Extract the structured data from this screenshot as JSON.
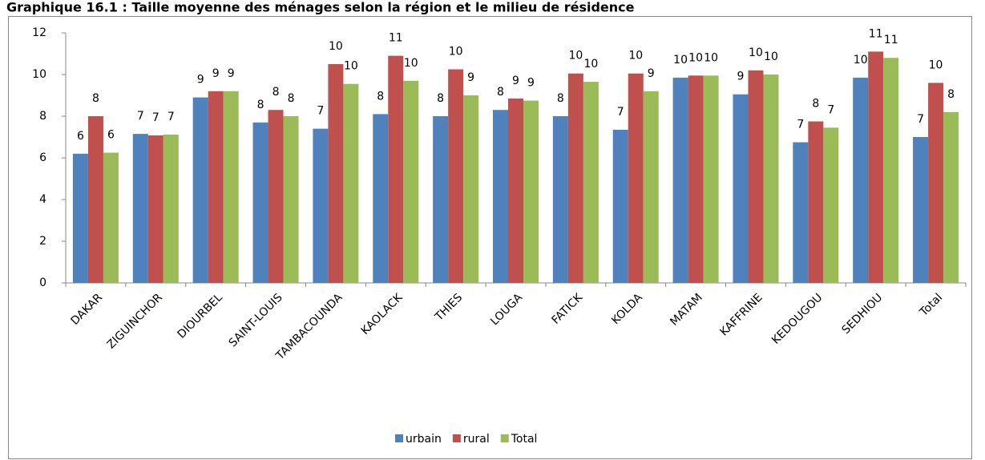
{
  "chart_data": {
    "type": "bar",
    "title": "Graphique 16.1 : Taille moyenne des ménages selon la région et le milieu de résidence",
    "categories": [
      "DAKAR",
      "ZIGUINCHOR",
      "DIOURBEL",
      "SAINT-LOUIS",
      "TAMBACOUNDA",
      "KAOLACK",
      "THIES",
      "LOUGA",
      "FATICK",
      "KOLDA",
      "MATAM",
      "KAFFRINE",
      "KEDOUGOU",
      "SEDHIOU",
      "Total"
    ],
    "series": [
      {
        "name": "urbain",
        "color": "#4f81bd",
        "values": [
          6.2,
          7.15,
          8.9,
          7.7,
          7.4,
          8.1,
          8.0,
          8.3,
          8.0,
          7.35,
          9.85,
          9.05,
          6.75,
          9.85,
          7.0
        ],
        "value_labels": [
          "6",
          "7",
          "9",
          "8",
          "7",
          "8",
          "8",
          "8",
          "8",
          "7",
          "10",
          "9",
          "7",
          "10",
          "7"
        ]
      },
      {
        "name": "rural",
        "color": "#c0504d",
        "values": [
          8.0,
          7.08,
          9.2,
          8.3,
          10.5,
          10.9,
          10.25,
          8.85,
          10.05,
          10.05,
          9.95,
          10.2,
          7.75,
          11.1,
          9.6
        ],
        "value_labels": [
          "8",
          "7",
          "9",
          "8",
          "10",
          "11",
          "10",
          "9",
          "10",
          "10",
          "10",
          "10",
          "8",
          "11",
          "10"
        ]
      },
      {
        "name": "Total",
        "color": "#9bbb59",
        "values": [
          6.25,
          7.12,
          9.2,
          8.0,
          9.55,
          9.7,
          9.0,
          8.75,
          9.65,
          9.2,
          9.95,
          10.0,
          7.45,
          10.8,
          8.2
        ],
        "value_labels": [
          "6",
          "7",
          "9",
          "8",
          "10",
          "10",
          "9",
          "9",
          "10",
          "9",
          "10",
          "10",
          "7",
          "11",
          "8"
        ]
      }
    ],
    "ylim": [
      0,
      12
    ],
    "yticks": [
      0,
      2,
      4,
      6,
      8,
      10,
      12
    ],
    "grid": false,
    "legend": "bottom"
  }
}
